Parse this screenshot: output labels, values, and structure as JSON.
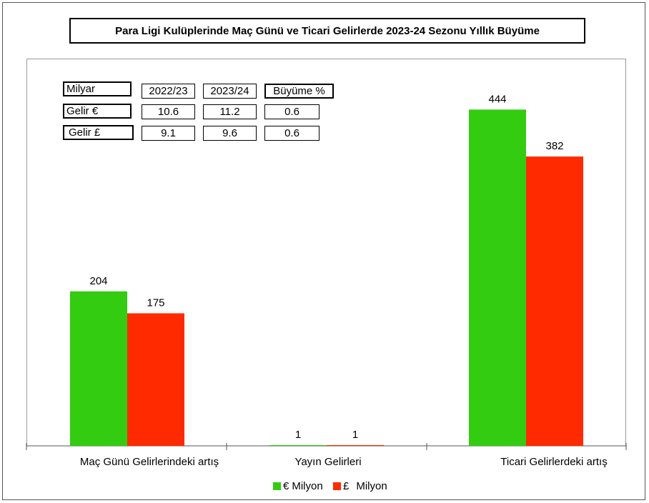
{
  "chart_data": {
    "type": "bar",
    "title": "Para Ligi Kulüplerinde Maç Günü ve Ticari Gelirlerde 2023-24 Sezonu Yıllık Büyüme",
    "categories": [
      "Maç Günü Gelirlerindeki artış",
      "Yayın Gelirleri",
      "Ticari Gelirlerdeki artış"
    ],
    "series": [
      {
        "name": "€ Milyon",
        "symbol": "€",
        "label": "Milyon",
        "color": "#33cc11",
        "values": [
          204,
          1,
          444
        ]
      },
      {
        "name": "£ Milyon",
        "symbol": "£",
        "label": "Milyon",
        "color": "#ff2a00",
        "values": [
          175,
          1,
          382
        ]
      }
    ],
    "ylim": [
      0,
      500
    ],
    "grid": false,
    "legend": "bottom-center"
  },
  "table": {
    "header": [
      "Milyar",
      "2022/23",
      "2023/24",
      "Büyüme %"
    ],
    "rows": [
      [
        "Gelir €",
        "10.6",
        "11.2",
        "0.6"
      ],
      [
        "Gelir £",
        "9.1",
        "9.6",
        "0.6"
      ]
    ]
  }
}
